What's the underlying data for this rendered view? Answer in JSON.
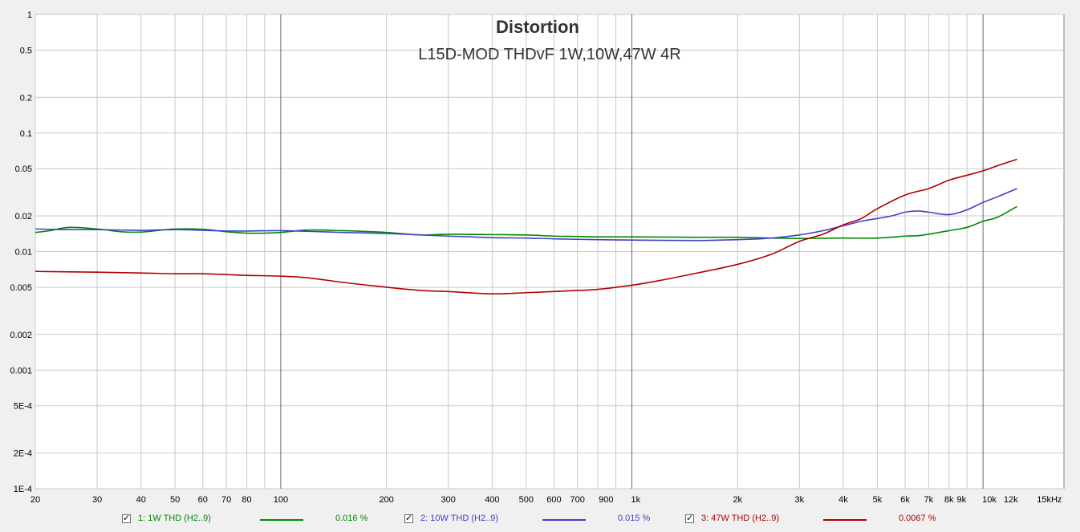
{
  "chart_data": {
    "type": "line",
    "title": "Distortion",
    "subtitle": "L15D-MOD THDvF 1W,10W,47W 4R",
    "x_scale": "log",
    "y_scale": "log",
    "xlim": [
      20,
      17000
    ],
    "ylim": [
      0.0001,
      1
    ],
    "y_ticks": [
      {
        "v": 1,
        "label": "1"
      },
      {
        "v": 0.5,
        "label": "0.5"
      },
      {
        "v": 0.2,
        "label": "0.2"
      },
      {
        "v": 0.1,
        "label": "0.1"
      },
      {
        "v": 0.05,
        "label": "0.05"
      },
      {
        "v": 0.02,
        "label": "0.02"
      },
      {
        "v": 0.01,
        "label": "0.01"
      },
      {
        "v": 0.005,
        "label": "0.005"
      },
      {
        "v": 0.002,
        "label": "0.002"
      },
      {
        "v": 0.001,
        "label": "0.001"
      },
      {
        "v": 0.0005,
        "label": "5E-4"
      },
      {
        "v": 0.0002,
        "label": "2E-4"
      },
      {
        "v": 0.0001,
        "label": "1E-4"
      }
    ],
    "x_ticks": [
      {
        "v": 20,
        "label": "20"
      },
      {
        "v": 30,
        "label": "30"
      },
      {
        "v": 40,
        "label": "40"
      },
      {
        "v": 50,
        "label": "50"
      },
      {
        "v": 60,
        "label": "60"
      },
      {
        "v": 70,
        "label": "70"
      },
      {
        "v": 80,
        "label": "80"
      },
      {
        "v": 100,
        "label": "100"
      },
      {
        "v": 200,
        "label": "200"
      },
      {
        "v": 300,
        "label": "300"
      },
      {
        "v": 400,
        "label": "400"
      },
      {
        "v": 500,
        "label": "500"
      },
      {
        "v": 600,
        "label": "600"
      },
      {
        "v": 700,
        "label": "700"
      },
      {
        "v": 900,
        "label": "900"
      },
      {
        "v": 1000,
        "label": "1k"
      },
      {
        "v": 2000,
        "label": "2k"
      },
      {
        "v": 3000,
        "label": "3k"
      },
      {
        "v": 4000,
        "label": "4k"
      },
      {
        "v": 5000,
        "label": "5k"
      },
      {
        "v": 6000,
        "label": "6k"
      },
      {
        "v": 7000,
        "label": "7k"
      },
      {
        "v": 8000,
        "label": "8k"
      },
      {
        "v": 9000,
        "label": "9k"
      },
      {
        "v": 10000,
        "label": "10k"
      },
      {
        "v": 12000,
        "label": "12k",
        "muted": true
      },
      {
        "v": 15000,
        "label": "15kHz"
      }
    ],
    "major_gridlines_x": [
      100,
      1000,
      10000
    ],
    "grid": true,
    "legend_placement": "bottom",
    "series": [
      {
        "name": "1: 1W THD (H2..9)",
        "value": "0.016 %",
        "color": "#008a00",
        "x": [
          20,
          22,
          25,
          30,
          35,
          40,
          45,
          50,
          60,
          70,
          80,
          90,
          100,
          120,
          150,
          200,
          250,
          300,
          400,
          500,
          600,
          700,
          800,
          1000,
          1500,
          2000,
          2500,
          3000,
          4000,
          5000,
          6000,
          6500,
          7000,
          8000,
          9000,
          10000,
          11000,
          12500
        ],
        "y": [
          0.0145,
          0.015,
          0.016,
          0.0155,
          0.0147,
          0.0146,
          0.0151,
          0.0155,
          0.0154,
          0.0147,
          0.0143,
          0.0143,
          0.0145,
          0.0152,
          0.015,
          0.0145,
          0.0138,
          0.014,
          0.0139,
          0.0138,
          0.0135,
          0.0134,
          0.0133,
          0.0133,
          0.0132,
          0.0132,
          0.013,
          0.0129,
          0.013,
          0.013,
          0.0135,
          0.0136,
          0.014,
          0.015,
          0.016,
          0.018,
          0.0195,
          0.024
        ]
      },
      {
        "name": "2: 10W THD (H2..9)",
        "value": "0.015 %",
        "color": "#4040cc",
        "x": [
          20,
          25,
          30,
          35,
          40,
          50,
          60,
          70,
          80,
          100,
          150,
          200,
          300,
          400,
          500,
          600,
          800,
          1000,
          1500,
          2000,
          2500,
          3000,
          3500,
          4000,
          4500,
          5000,
          5500,
          6000,
          6500,
          7000,
          8000,
          9000,
          10000,
          11000,
          12500
        ],
        "y": [
          0.0155,
          0.0153,
          0.0153,
          0.0152,
          0.0151,
          0.0153,
          0.0151,
          0.0149,
          0.0149,
          0.015,
          0.0145,
          0.0142,
          0.0135,
          0.0131,
          0.013,
          0.0128,
          0.0126,
          0.0125,
          0.0124,
          0.0126,
          0.013,
          0.0138,
          0.015,
          0.0165,
          0.018,
          0.019,
          0.02,
          0.0215,
          0.022,
          0.0215,
          0.0205,
          0.0225,
          0.026,
          0.029,
          0.034
        ]
      },
      {
        "name": "3: 47W THD (H2..9)",
        "value": "0.0067 %",
        "color": "#b00000",
        "x": [
          20,
          30,
          40,
          50,
          60,
          70,
          80,
          100,
          120,
          150,
          200,
          250,
          300,
          400,
          500,
          600,
          700,
          800,
          1000,
          1200,
          1500,
          2000,
          2500,
          3000,
          3500,
          4000,
          4500,
          5000,
          6000,
          7000,
          8000,
          9000,
          10000,
          11000,
          12500
        ],
        "y": [
          0.0068,
          0.0067,
          0.0066,
          0.0065,
          0.0065,
          0.0064,
          0.0063,
          0.0062,
          0.006,
          0.0055,
          0.005,
          0.0047,
          0.0046,
          0.0044,
          0.0045,
          0.0046,
          0.0047,
          0.0048,
          0.0052,
          0.0057,
          0.0065,
          0.0078,
          0.0095,
          0.0122,
          0.014,
          0.0168,
          0.019,
          0.023,
          0.03,
          0.034,
          0.04,
          0.044,
          0.048,
          0.053,
          0.06
        ]
      }
    ]
  }
}
